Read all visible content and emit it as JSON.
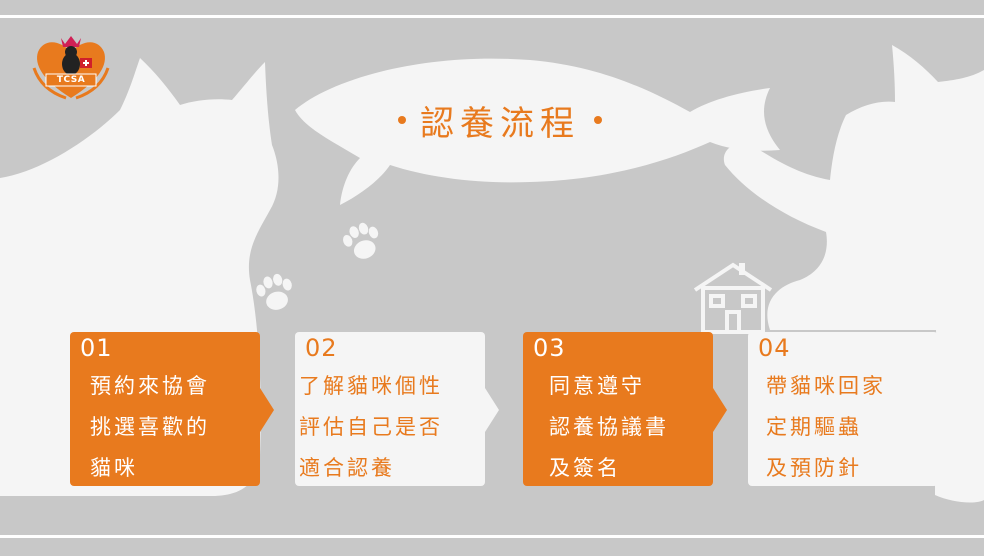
{
  "title": {
    "text": "認養流程"
  },
  "logo": {
    "text": "TCSA"
  },
  "steps": [
    {
      "num": "01",
      "lines": [
        "預約來協會",
        "挑選喜歡的",
        "貓咪"
      ],
      "style": "orange"
    },
    {
      "num": "02",
      "lines": [
        "了解貓咪個性",
        "評估自己是否",
        "適合認養"
      ],
      "style": "white"
    },
    {
      "num": "03",
      "lines": [
        "同意遵守",
        "認養協議書",
        "及簽名"
      ],
      "style": "orange"
    },
    {
      "num": "04",
      "lines": [
        "帶貓咪回家",
        "定期驅蟲",
        "及預防針"
      ],
      "style": "white"
    }
  ],
  "colors": {
    "accent": "#e87a1e",
    "background": "#c8c8c8",
    "silhouette": "#f5f5f5"
  },
  "icons": [
    "paw-print-icon",
    "house-icon",
    "fish-silhouette",
    "cat-silhouette"
  ]
}
